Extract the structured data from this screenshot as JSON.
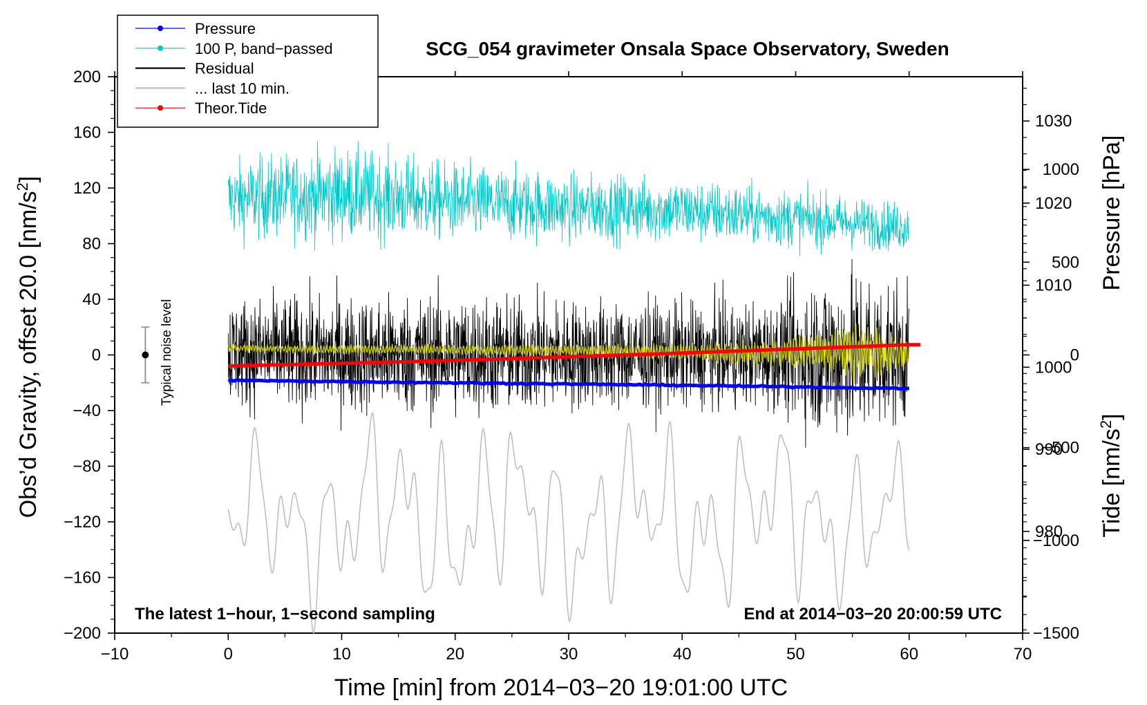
{
  "chart_data": {
    "type": "line",
    "title": "SCG_054 gravimeter Onsala Space Observatory, Sweden",
    "xlabel": "Time [min] from 2014−03−20 19:01:00 UTC",
    "ylabel_left_main": "Obs’d Gravity, offset 20.0 [nm/s",
    "ylabel_left_sup": "2",
    "ylabel_left_end": "]",
    "ylabel_right_pressure": "Pressure [hPa]",
    "ylabel_right_tide_main": "Tide [nm/s",
    "ylabel_right_tide_sup": "2",
    "ylabel_right_tide_end": "]",
    "note_left": "The latest 1−hour, 1−second sampling",
    "note_right": "End at 2014−03−20 20:00:59 UTC",
    "noise_label": "Typical noise level",
    "noise_level": {
      "x": -7.3,
      "y": 0,
      "half_range": 20
    },
    "xlim": [
      -10,
      70
    ],
    "ylim": [
      -200,
      200
    ],
    "pressure_lim": [
      967.6,
      1035.4
    ],
    "tide_lim": [
      -1500,
      1500
    ],
    "x_ticks": [
      "−10",
      "0",
      "10",
      "20",
      "30",
      "40",
      "50",
      "60",
      "70"
    ],
    "x_tick_values": [
      -10,
      0,
      10,
      20,
      30,
      40,
      50,
      60,
      70
    ],
    "y_ticks": [
      "200",
      "160",
      "120",
      "80",
      "40",
      "0",
      "−40",
      "−80",
      "−120",
      "−160",
      "−200"
    ],
    "y_tick_values": [
      200,
      160,
      120,
      80,
      40,
      0,
      -40,
      -80,
      -120,
      -160,
      -200
    ],
    "pressure_ticks": [
      "1030",
      "1020",
      "1010",
      "1000",
      "990",
      "980"
    ],
    "pressure_tick_values": [
      1030,
      1020,
      1010,
      1000,
      990,
      980
    ],
    "tide_ticks": [
      "1000",
      "500",
      "0",
      "−500",
      "−1000",
      "−1500"
    ],
    "tide_tick_values": [
      1000,
      500,
      0,
      -500,
      -1000,
      -1500
    ],
    "legend": [
      {
        "label": "Pressure",
        "color": "#0000ff",
        "marker": true
      },
      {
        "label": "100 P, band−passed",
        "color": "#00c8c8",
        "marker": true
      },
      {
        "label": "Residual",
        "color": "#000000",
        "marker": false
      },
      {
        "label": "... last 10 min.",
        "color": "#bebebe",
        "marker": false
      },
      {
        "label": "Theor.Tide",
        "color": "#ff0000",
        "marker": true
      }
    ],
    "series": [
      {
        "name": "Pressure",
        "axis": "pressure",
        "color": "#0000ff",
        "x": [
          0,
          20,
          40,
          60
        ],
        "values": [
          998.4,
          998.1,
          997.8,
          997.4
        ]
      },
      {
        "name": "100 P, band−passed",
        "axis": "left",
        "color": "#00c8c8",
        "x": [
          0,
          10,
          20,
          30,
          40,
          50,
          60
        ],
        "values": [
          112,
          116,
          110,
          106,
          104,
          98,
          92
        ],
        "spread": [
          27,
          32,
          27,
          24,
          22,
          20,
          16
        ]
      },
      {
        "name": "Residual",
        "axis": "left",
        "color": "#000000",
        "x": [
          0,
          10,
          20,
          30,
          40,
          48,
          52,
          56,
          60
        ],
        "values": [
          2,
          0,
          0,
          0,
          0,
          0,
          0,
          0,
          0
        ],
        "spread": [
          38,
          40,
          42,
          38,
          36,
          36,
          55,
          60,
          45
        ]
      },
      {
        "name": "Residual yellow trace",
        "axis": "left",
        "color": "#c8c800",
        "x": [
          0,
          10,
          20,
          30,
          40,
          48,
          52,
          56,
          60
        ],
        "values": [
          5,
          4,
          4,
          3,
          2,
          1,
          3,
          2,
          0
        ],
        "spread": [
          2,
          3,
          3,
          4,
          5,
          8,
          12,
          20,
          8
        ]
      },
      {
        "name": "... last 10 min.",
        "axis": "left",
        "color": "#bebebe",
        "x": [
          0,
          10,
          20,
          30,
          40,
          50,
          60
        ],
        "values": [
          -120,
          -118,
          -115,
          -120,
          -118,
          -115,
          -120
        ],
        "spread": [
          35,
          45,
          50,
          45,
          45,
          45,
          35
        ]
      },
      {
        "name": "Theor.Tide",
        "axis": "tide",
        "color": "#ff0000",
        "x": [
          0,
          20,
          40,
          60
        ],
        "values": [
          -60,
          -30,
          10,
          55
        ]
      }
    ]
  }
}
